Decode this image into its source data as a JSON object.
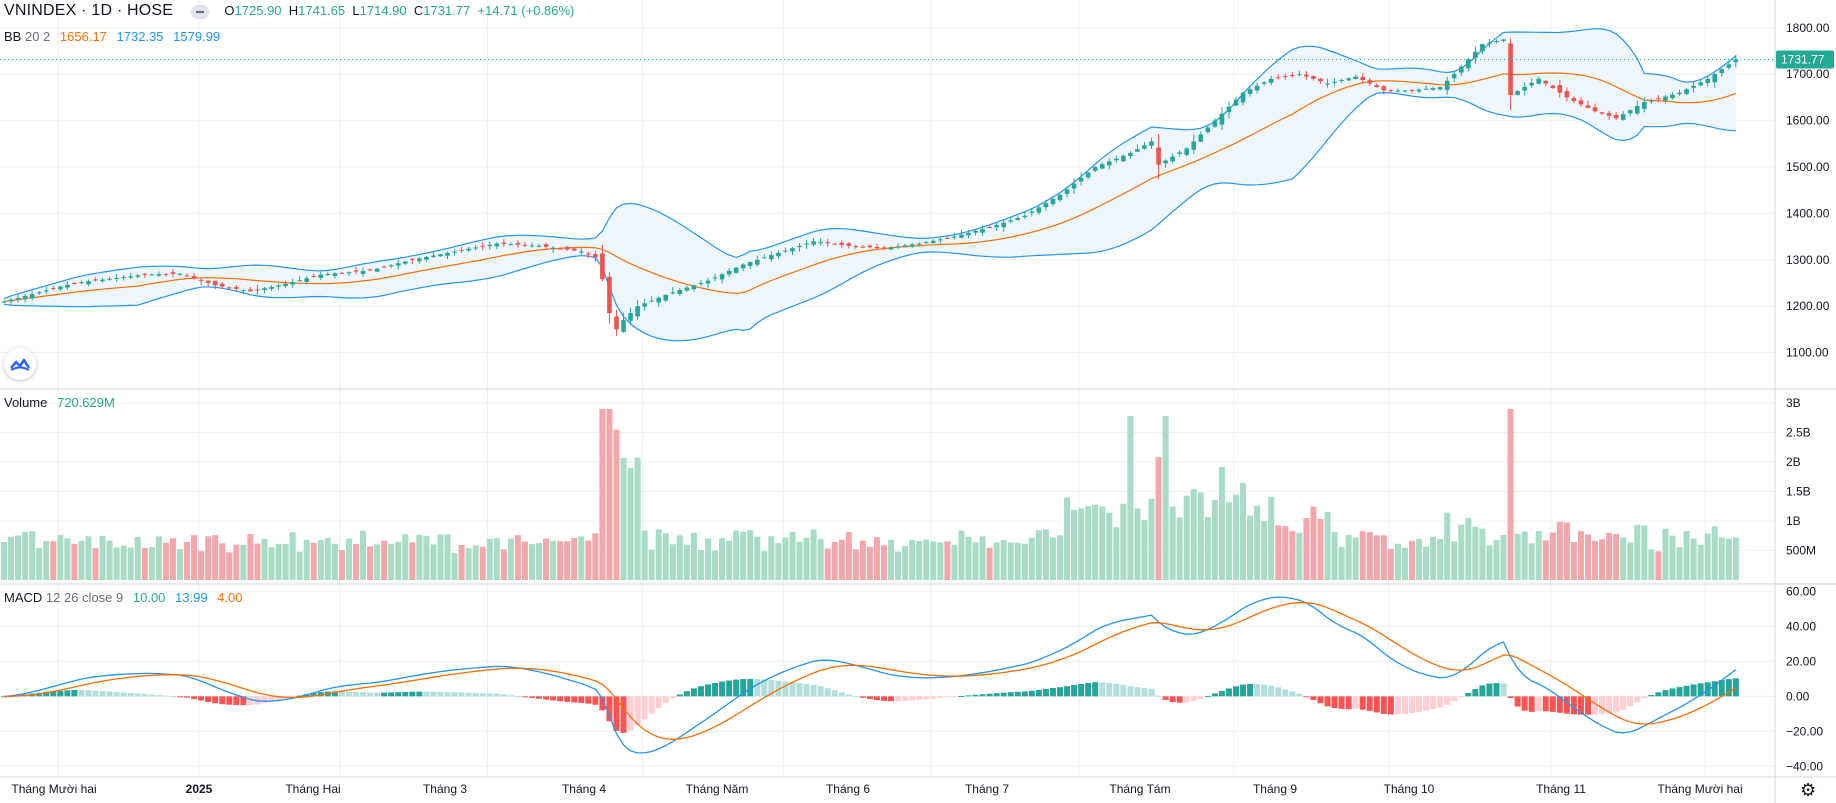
{
  "symbol": {
    "title": "VNINDEX · 1D · HOSE",
    "open_label": "O",
    "open": "1725.90",
    "high_label": "H",
    "high": "1741.65",
    "low_label": "L",
    "low": "1714.90",
    "close_label": "C",
    "close": "1731.77",
    "change": "+14.71 (+0.86%)"
  },
  "bb": {
    "label": "BB",
    "params": "20 2",
    "basis": "1656.17",
    "upper": "1732.35",
    "lower": "1579.99"
  },
  "volume": {
    "label": "Volume",
    "value": "720.629M"
  },
  "macd": {
    "label": "MACD",
    "params": "12 26 close 9",
    "histogram": "10.00",
    "macd": "13.99",
    "signal": "4.00"
  },
  "price_tag": "1731.77",
  "colors": {
    "up": "#26a69a",
    "down": "#ef5350",
    "vol_up": "#a8dcc6",
    "vol_down": "#f4a7aa",
    "bb_band": "#2196f3",
    "bb_basis": "#ff6d00",
    "bb_fill": "#eef6fc",
    "macd": "#2196f3",
    "signal": "#ff6d00",
    "hist_up_strong": "#26a69a",
    "hist_up_weak": "#b2dfdb",
    "hist_down_strong": "#ff5252",
    "hist_down_weak": "#ffcdd2",
    "grid": "#eef0f4",
    "axis_text": "#131722"
  },
  "chart_data": [
    {
      "type": "candlestick",
      "title": "VNINDEX, 1D, HOSE",
      "y_ticks": [
        1100,
        1200,
        1300,
        1400,
        1500,
        1600,
        1700,
        1800
      ],
      "y_tick_labels": [
        "1100.00",
        "1200.00",
        "1300.00",
        "1400.00",
        "1500.00",
        "1600.00",
        "1700.00",
        "1800.00"
      ],
      "ylim": [
        1030,
        1860
      ],
      "x_tick_labels": [
        "Tháng Mười hai",
        "2025",
        "Tháng Hai",
        "Tháng 3",
        "Tháng 4",
        "Tháng Năm",
        "Tháng 6",
        "Tháng 7",
        "Tháng Tám",
        "Tháng 9",
        "Tháng 10",
        "Tháng 11",
        "Tháng Mười hai"
      ],
      "close_anchors": [
        [
          0,
          1210
        ],
        [
          10,
          1250
        ],
        [
          20,
          1268
        ],
        [
          25,
          1270
        ],
        [
          30,
          1245
        ],
        [
          35,
          1232
        ],
        [
          40,
          1248
        ],
        [
          45,
          1268
        ],
        [
          52,
          1277
        ],
        [
          58,
          1300
        ],
        [
          64,
          1318
        ],
        [
          70,
          1335
        ],
        [
          76,
          1330
        ],
        [
          82,
          1318
        ],
        [
          84,
          1305
        ],
        [
          85,
          1258
        ],
        [
          86,
          1185
        ],
        [
          87,
          1150
        ],
        [
          88,
          1170
        ],
        [
          90,
          1200
        ],
        [
          95,
          1230
        ],
        [
          100,
          1255
        ],
        [
          105,
          1290
        ],
        [
          110,
          1315
        ],
        [
          115,
          1340
        ],
        [
          120,
          1330
        ],
        [
          125,
          1325
        ],
        [
          130,
          1335
        ],
        [
          135,
          1350
        ],
        [
          140,
          1370
        ],
        [
          145,
          1395
        ],
        [
          150,
          1440
        ],
        [
          155,
          1500
        ],
        [
          160,
          1530
        ],
        [
          163,
          1555
        ],
        [
          164,
          1505
        ],
        [
          168,
          1540
        ],
        [
          172,
          1600
        ],
        [
          176,
          1660
        ],
        [
          180,
          1690
        ],
        [
          184,
          1700
        ],
        [
          188,
          1680
        ],
        [
          192,
          1695
        ],
        [
          196,
          1665
        ],
        [
          200,
          1665
        ],
        [
          204,
          1672
        ],
        [
          206,
          1700
        ],
        [
          210,
          1765
        ],
        [
          213,
          1775
        ],
        [
          214,
          1655
        ],
        [
          218,
          1690
        ],
        [
          222,
          1650
        ],
        [
          226,
          1620
        ],
        [
          229,
          1605
        ],
        [
          233,
          1640
        ],
        [
          238,
          1660
        ],
        [
          242,
          1690
        ],
        [
          246,
          1731.77
        ]
      ],
      "last": {
        "open": 1725.9,
        "high": 1741.65,
        "low": 1714.9,
        "close": 1731.77
      },
      "bollinger": {
        "period": 20,
        "stdev": 2,
        "last_basis": 1656.17,
        "last_upper": 1732.35,
        "last_lower": 1579.99
      }
    },
    {
      "type": "bar",
      "title": "Volume",
      "y_ticks": [
        500000000,
        1000000000,
        1500000000,
        2000000000,
        2500000000,
        3000000000
      ],
      "y_tick_labels": [
        "500M",
        "1B",
        "1.5B",
        "2B",
        "2.5B",
        "3B"
      ],
      "ylim": [
        0,
        3000000000
      ],
      "last_value": 720629000
    },
    {
      "type": "line",
      "title": "MACD",
      "params": "12 26 close 9",
      "y_ticks": [
        -40,
        -20,
        0,
        20,
        40,
        60
      ],
      "y_tick_labels": [
        "−40.00",
        "−20.00",
        "0.00",
        "20.00",
        "40.00",
        "60.00"
      ],
      "ylim": [
        -45,
        62
      ],
      "last": {
        "histogram": 10.0,
        "macd": 13.99,
        "signal": 4.0
      }
    }
  ]
}
